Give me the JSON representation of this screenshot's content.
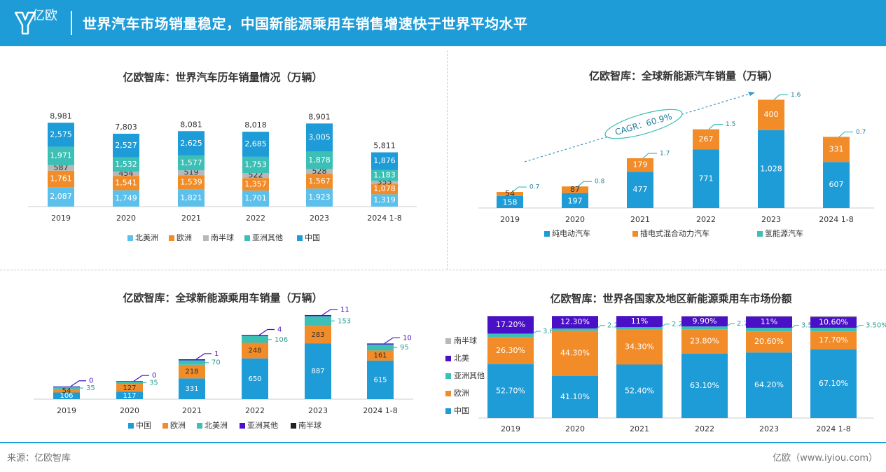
{
  "header": {
    "brand": "亿欧",
    "title": "世界汽车市场销量稳定，中国新能源乘用车销售增速快于世界平均水平"
  },
  "footer": {
    "source": "来源：亿欧智库",
    "site": "亿欧（www.iyiou.com）"
  },
  "colors": {
    "header_bg": "#1e9cd7",
    "north_america": "#5bc0eb",
    "europe": "#f28c28",
    "southern": "#b8b8b8",
    "asia_other": "#3cbfb4",
    "china": "#1e9cd7",
    "purple": "#4a10c8",
    "black": "#222222"
  },
  "chart_data": [
    {
      "id": "world_sales",
      "type": "bar",
      "stacked": true,
      "title": "亿欧智库：世界汽车历年销量情况（万辆）",
      "categories": [
        "2019",
        "2020",
        "2021",
        "2022",
        "2023",
        "2024 1-8"
      ],
      "series": [
        {
          "name": "北美洲",
          "color": "#5bc0eb",
          "values": [
            2087,
            1749,
            1821,
            1701,
            1923,
            1319
          ]
        },
        {
          "name": "欧洲",
          "color": "#f28c28",
          "values": [
            1761,
            1541,
            1539,
            1357,
            1567,
            1078
          ]
        },
        {
          "name": "南半球",
          "color": "#b8b8b8",
          "values": [
            587,
            454,
            519,
            522,
            528,
            355
          ]
        },
        {
          "name": "亚洲其他",
          "color": "#3cbfb4",
          "values": [
            1971,
            1532,
            1577,
            1753,
            1878,
            1183
          ]
        },
        {
          "name": "中国",
          "color": "#1e9cd7",
          "values": [
            2575,
            2527,
            2625,
            2685,
            3005,
            1876
          ]
        }
      ],
      "totals": [
        "8,981",
        "7,803",
        "8,081",
        "8,018",
        "8,901",
        "5,811"
      ],
      "ylim": [
        0,
        9000
      ]
    },
    {
      "id": "global_nev",
      "type": "bar",
      "stacked": true,
      "title": "亿欧智库：全球新能源汽车销量（万辆）",
      "categories": [
        "2019",
        "2020",
        "2021",
        "2022",
        "2023",
        "2024 1-8"
      ],
      "series": [
        {
          "name": "纯电动汽车",
          "color": "#1e9cd7",
          "values": [
            158,
            197,
            477,
            771,
            1028,
            607
          ]
        },
        {
          "name": "插电式混合动力汽车",
          "color": "#f28c28",
          "values": [
            54,
            87,
            179,
            267,
            400,
            331
          ]
        },
        {
          "name": "氢能源汽车",
          "color": "#3cbfb4",
          "values": [
            0.7,
            0.8,
            1.7,
            1.5,
            1.6,
            0.7
          ]
        }
      ],
      "annotation": "CAGR：60.9%",
      "ylim": [
        0,
        1450
      ]
    },
    {
      "id": "global_nev_passenger",
      "type": "bar",
      "stacked": true,
      "title": "亿欧智库：全球新能源乘用车销量（万辆）",
      "categories": [
        "2019",
        "2020",
        "2021",
        "2022",
        "2023",
        "2024 1-8"
      ],
      "series": [
        {
          "name": "中国",
          "color": "#1e9cd7",
          "values": [
            106,
            117,
            331,
            650,
            887,
            615
          ]
        },
        {
          "name": "欧洲",
          "color": "#f28c28",
          "values": [
            54,
            127,
            218,
            248,
            283,
            161
          ]
        },
        {
          "name": "北美洲",
          "color": "#3cbfb4",
          "values": [
            35,
            35,
            70,
            106,
            153,
            95
          ]
        },
        {
          "name": "亚洲其他",
          "color": "#4a10c8",
          "values": [
            0,
            0,
            1,
            4,
            11,
            10
          ]
        },
        {
          "name": "南半球",
          "color": "#222222",
          "values": [
            0,
            0,
            0,
            0,
            0,
            0
          ]
        }
      ],
      "ylim": [
        0,
        1350
      ]
    },
    {
      "id": "market_share",
      "type": "bar",
      "stacked": true,
      "title": "亿欧智库：世界各国家及地区新能源乘用车市场份额",
      "categories": [
        "2019",
        "2020",
        "2021",
        "2022",
        "2023",
        "2024 1-8"
      ],
      "series": [
        {
          "name": "中国",
          "color": "#1e9cd7",
          "values": [
            52.7,
            41.1,
            52.4,
            63.1,
            64.2,
            67.1
          ],
          "labels": [
            "52.70%",
            "41.10%",
            "52.40%",
            "63.10%",
            "64.20%",
            "67.10%"
          ]
        },
        {
          "name": "欧洲",
          "color": "#f28c28",
          "values": [
            26.3,
            44.3,
            34.3,
            23.8,
            20.6,
            17.7
          ],
          "labels": [
            "26.30%",
            "44.30%",
            "34.30%",
            "23.80%",
            "20.60%",
            "17.70%"
          ]
        },
        {
          "name": "亚洲其他",
          "color": "#3cbfb4",
          "values": [
            3.6,
            2.2,
            2.2,
            2.7,
            3.5,
            3.5
          ],
          "labels": [
            "3.60%",
            "2.20%",
            "2.20%",
            "2.70%",
            "3.50%",
            "3.50%"
          ]
        },
        {
          "name": "北美",
          "color": "#4a10c8",
          "values": [
            17.2,
            12.3,
            11,
            9.9,
            11,
            10.6
          ],
          "labels": [
            "17.20%",
            "12.30%",
            "11%",
            "9.90%",
            "11%",
            "10.60%"
          ]
        },
        {
          "name": "南半球",
          "color": "#b8b8b8",
          "values": [
            0.2,
            0.1,
            0.1,
            0.5,
            0.7,
            1.1
          ],
          "labels": []
        }
      ],
      "ylim": [
        0,
        100
      ]
    }
  ]
}
